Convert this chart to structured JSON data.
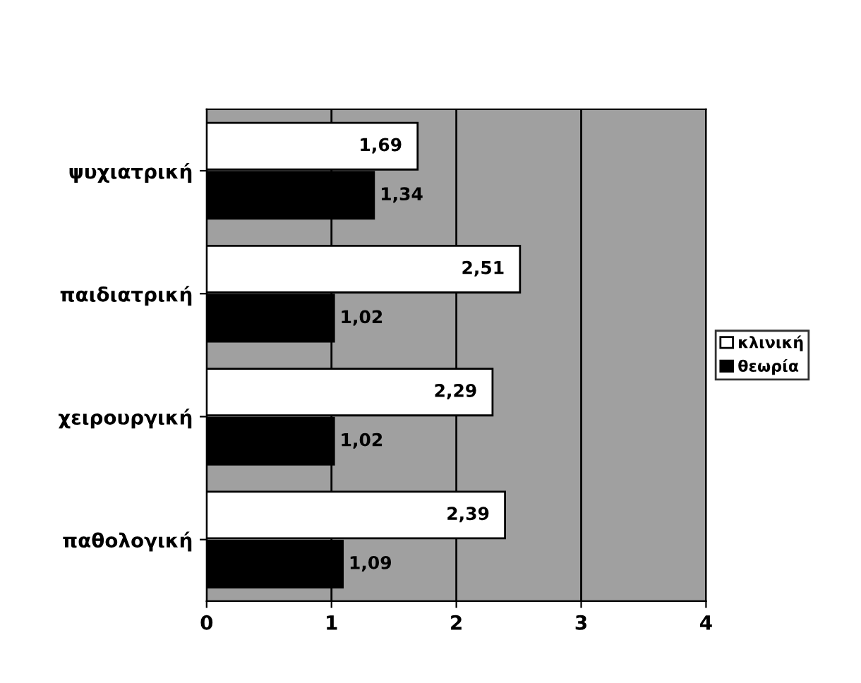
{
  "chart_data": {
    "type": "bar",
    "orientation": "horizontal",
    "categories": [
      "ψυχιατρική",
      "παιδιατρική",
      "χειρουργική",
      "παθολογική"
    ],
    "series": [
      {
        "name": "κλινική",
        "color": "#ffffff",
        "values": [
          1.69,
          2.51,
          2.29,
          2.39
        ],
        "value_labels": [
          "1,69",
          "2,51",
          "2,29",
          "2,39"
        ]
      },
      {
        "name": "θεωρία",
        "color": "#000000",
        "values": [
          1.34,
          1.02,
          1.02,
          1.09
        ],
        "value_labels": [
          "1,34",
          "1,02",
          "1,02",
          "1,09"
        ]
      }
    ],
    "xlim": [
      0,
      4
    ],
    "xticks": [
      0,
      1,
      2,
      3,
      4
    ],
    "grid": "x",
    "legend": "right"
  }
}
